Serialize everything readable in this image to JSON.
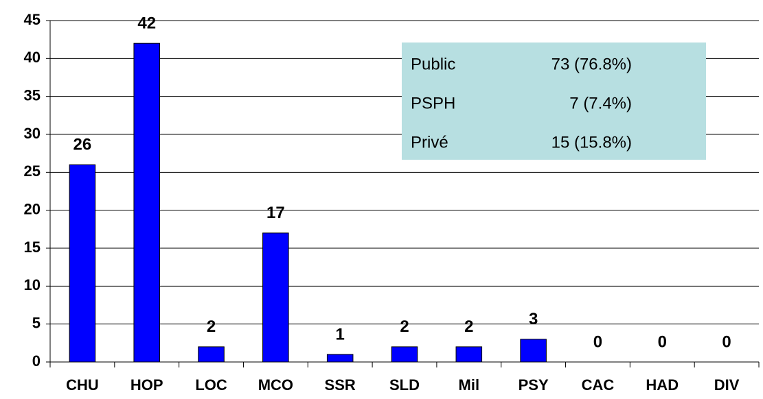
{
  "chart_data": {
    "type": "bar",
    "categories": [
      "CHU",
      "HOP",
      "LOC",
      "MCO",
      "SSR",
      "SLD",
      "Mil",
      "PSY",
      "CAC",
      "HAD",
      "DIV"
    ],
    "values": [
      26,
      42,
      2,
      17,
      1,
      2,
      2,
      3,
      0,
      0,
      0
    ],
    "color": "#0000ff",
    "ylim": [
      0,
      45
    ],
    "yticks": [
      0,
      5,
      10,
      15,
      20,
      25,
      30,
      35,
      40,
      45
    ],
    "grid": true,
    "table": {
      "rows": [
        [
          "Public",
          "73 (76.8%)"
        ],
        [
          "PSPH",
          "7 (7.4%)"
        ],
        [
          "Privé",
          "15 (15.8%)"
        ]
      ]
    }
  }
}
